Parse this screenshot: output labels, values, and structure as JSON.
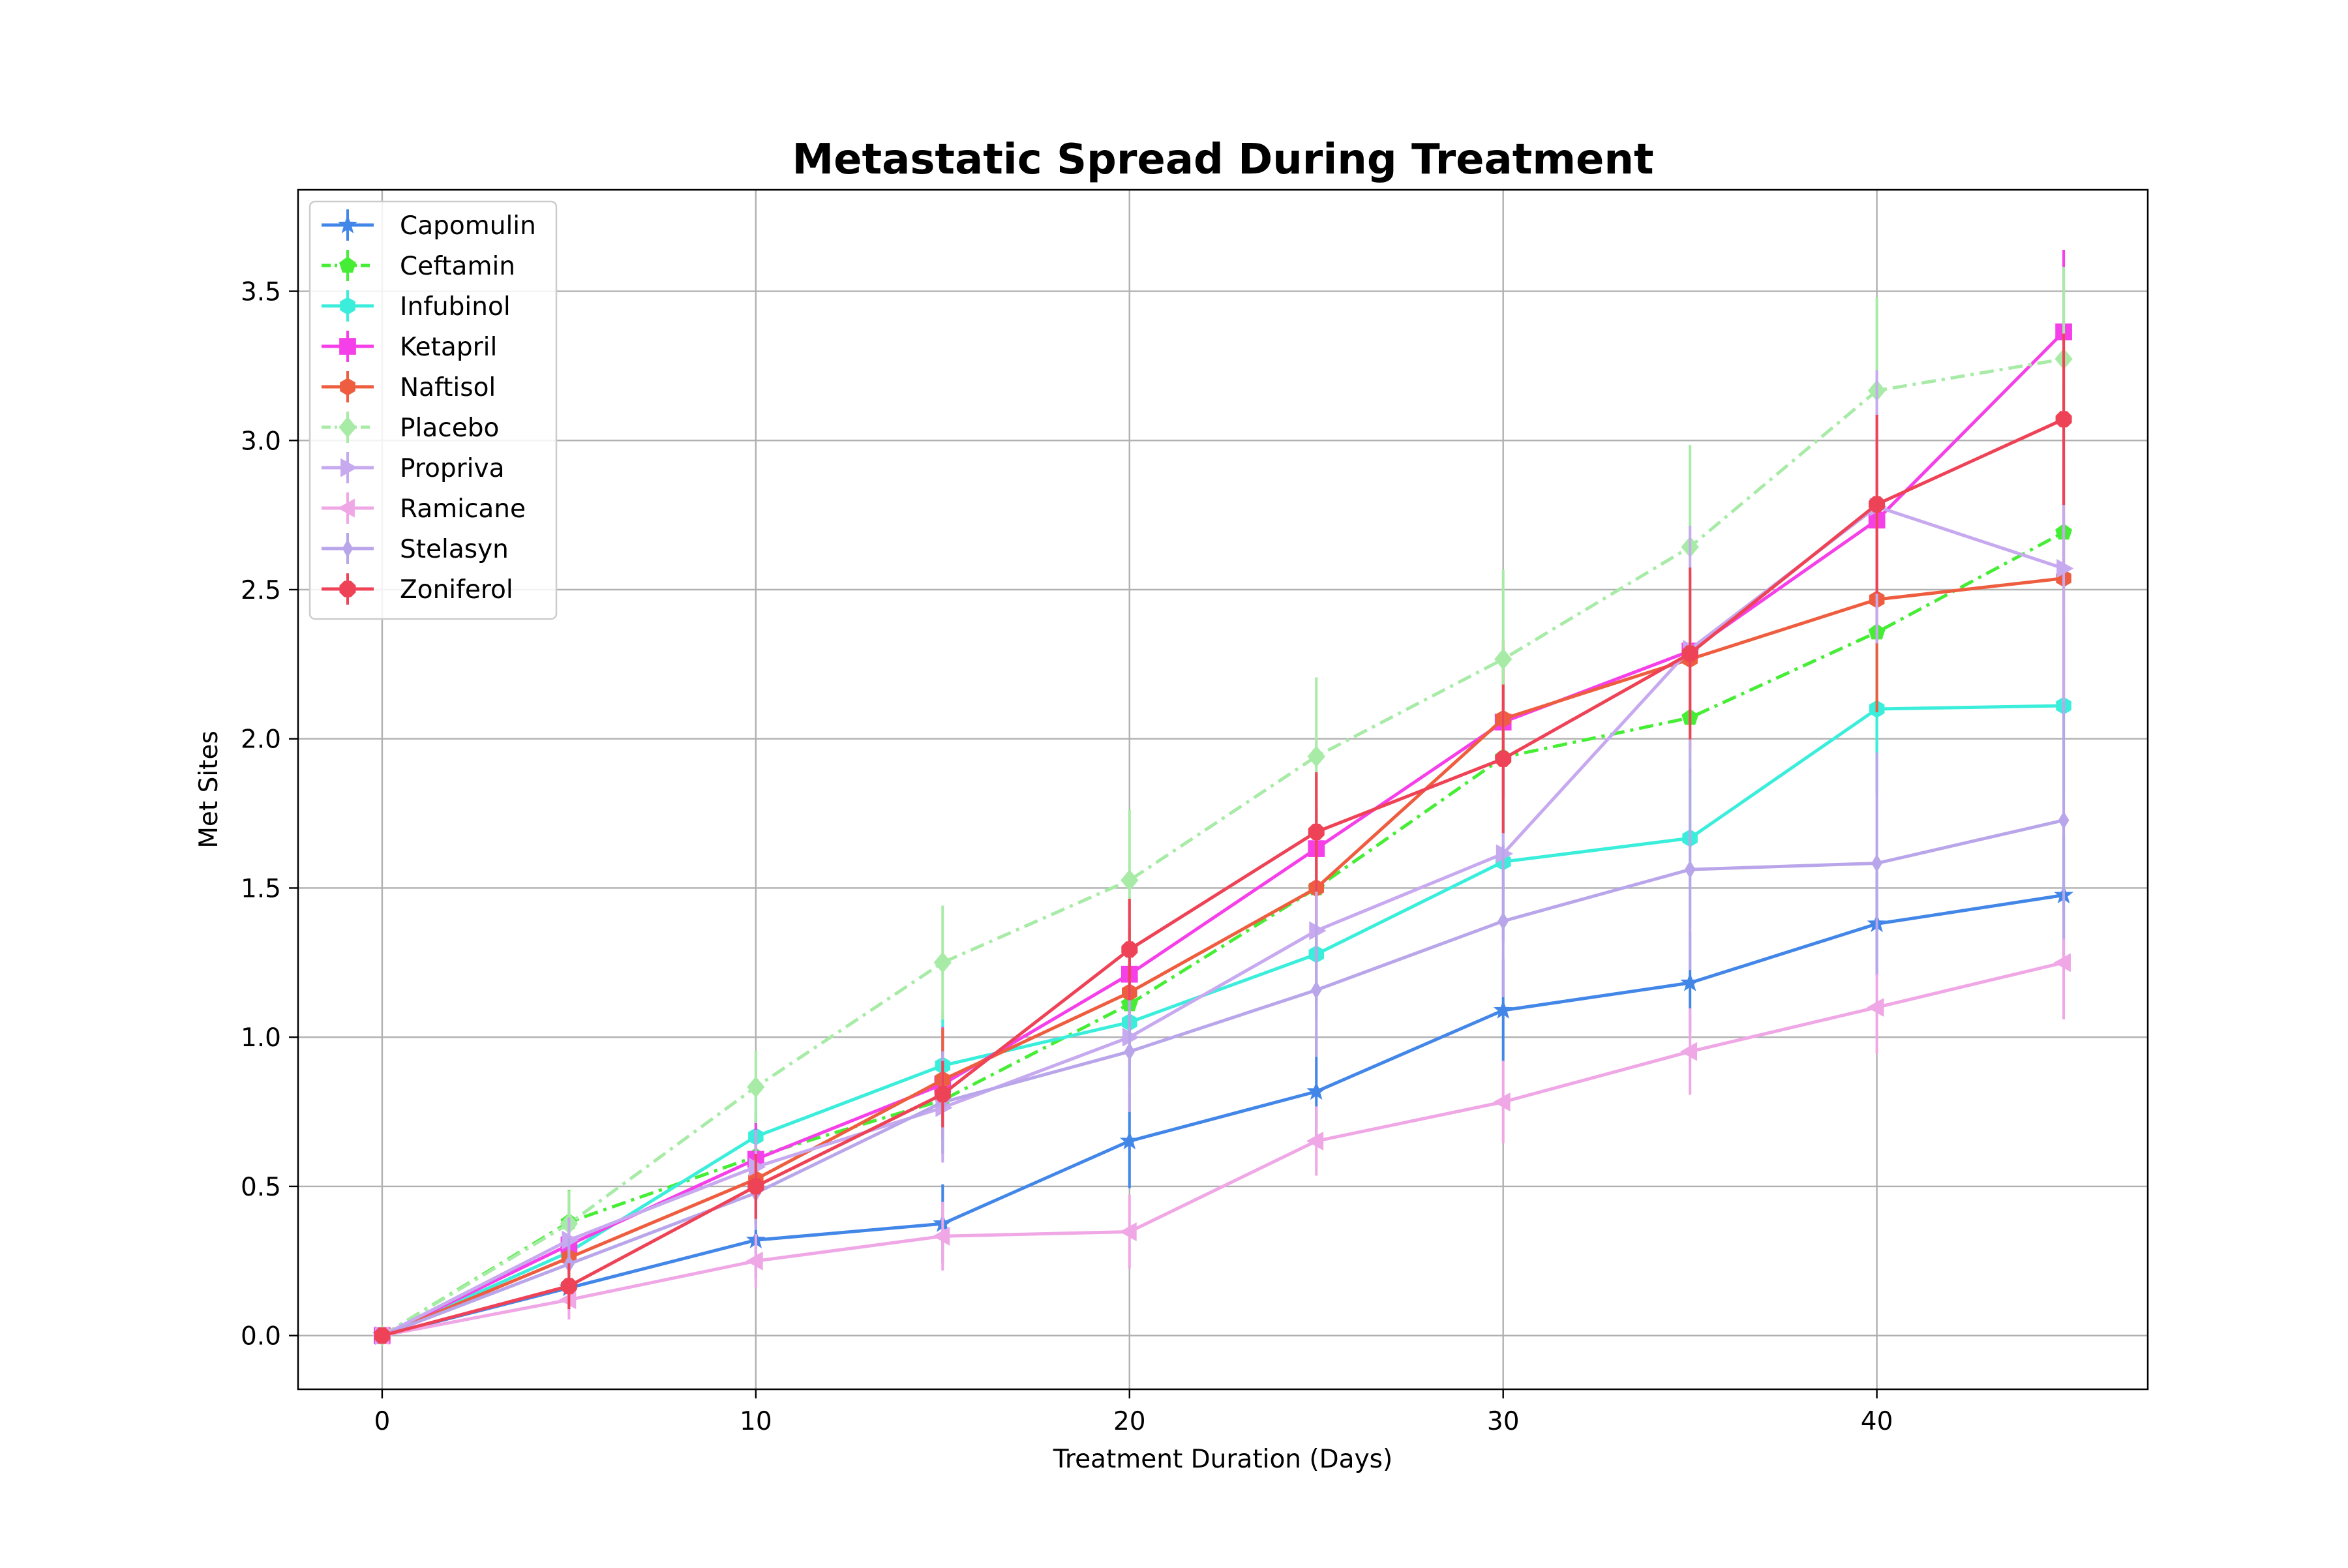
{
  "chart_data": {
    "type": "line",
    "title": "Metastatic Spread During Treatment",
    "xlabel": "Treatment Duration (Days)",
    "ylabel": "Met Sites",
    "xlim": [
      -2.25,
      47.25
    ],
    "ylim": [
      -0.18,
      3.84
    ],
    "xticks": [
      0,
      10,
      20,
      30,
      40
    ],
    "yticks": [
      0.0,
      0.5,
      1.0,
      1.5,
      2.0,
      2.5,
      3.0,
      3.5
    ],
    "grid": true,
    "legend_position": "upper-left",
    "x": [
      0,
      5,
      10,
      15,
      20,
      25,
      30,
      35,
      40,
      45
    ],
    "series": [
      {
        "name": "Capomulin",
        "color": "#4286e8",
        "dash": "solid",
        "marker": "star",
        "values": [
          0.0,
          0.16,
          0.32,
          0.375,
          0.652,
          0.818,
          1.09,
          1.182,
          1.38,
          1.476
        ],
        "errors": [
          0.0,
          0.074,
          0.126,
          0.132,
          0.158,
          0.181,
          0.172,
          0.169,
          0.175,
          0.203
        ]
      },
      {
        "name": "Ceftamin",
        "color": "#45ee35",
        "dash": "dashdot",
        "marker": "pentagon",
        "values": [
          0.0,
          0.38,
          0.6,
          0.789,
          1.111,
          1.5,
          1.938,
          2.071,
          2.357,
          2.692
        ],
        "errors": [
          0.0,
          0.108,
          0.152,
          0.181,
          0.241,
          0.258,
          0.249,
          0.438,
          0.428,
          0.491
        ]
      },
      {
        "name": "Infubinol",
        "color": "#3aeedb",
        "dash": "solid",
        "marker": "hexagon",
        "values": [
          0.0,
          0.28,
          0.667,
          0.905,
          1.05,
          1.278,
          1.588,
          1.667,
          2.1,
          2.111
        ],
        "errors": [
          0.0,
          0.093,
          0.163,
          0.171,
          0.221,
          0.216,
          0.269,
          0.298,
          0.287,
          0.307
        ]
      },
      {
        "name": "Ketapril",
        "color": "#f53fe8",
        "dash": "solid",
        "marker": "square",
        "values": [
          0.0,
          0.304,
          0.591,
          0.842,
          1.211,
          1.632,
          2.056,
          2.294,
          2.733,
          3.364
        ],
        "errors": [
          0.0,
          0.099,
          0.132,
          0.192,
          0.249,
          0.249,
          0.252,
          0.268,
          0.295,
          0.275
        ]
      },
      {
        "name": "Naftisol",
        "color": "#ee5d3f",
        "dash": "solid",
        "marker": "hexagon",
        "values": [
          0.0,
          0.261,
          0.524,
          0.857,
          1.15,
          1.5,
          2.067,
          2.267,
          2.467,
          2.538
        ],
        "errors": [
          0.0,
          0.091,
          0.151,
          0.173,
          0.222,
          0.274,
          0.264,
          0.303,
          0.378,
          0.402
        ]
      },
      {
        "name": "Placebo",
        "color": "#a7eba7",
        "dash": "dashdot",
        "marker": "diamond",
        "values": [
          0.0,
          0.375,
          0.833,
          1.25,
          1.526,
          1.941,
          2.267,
          2.643,
          3.167,
          3.273
        ],
        "errors": [
          0.0,
          0.11,
          0.121,
          0.191,
          0.237,
          0.265,
          0.299,
          0.342,
          0.312,
          0.309
        ]
      },
      {
        "name": "Propriva",
        "color": "#c7a9ef",
        "dash": "solid",
        "marker": "triangle-right",
        "values": [
          0.0,
          0.32,
          0.565,
          0.764,
          1.0,
          1.357,
          1.615,
          2.3,
          2.778,
          2.571
        ],
        "errors": [
          0.0,
          0.076,
          0.124,
          0.184,
          0.196,
          0.248,
          0.291,
          0.414,
          0.458,
          0.523
        ]
      },
      {
        "name": "Ramicane",
        "color": "#efa7e5",
        "dash": "solid",
        "marker": "triangle-left",
        "values": [
          0.0,
          0.12,
          0.25,
          0.333,
          0.348,
          0.652,
          0.783,
          0.952,
          1.1,
          1.25
        ],
        "errors": [
          0.0,
          0.066,
          0.09,
          0.115,
          0.124,
          0.116,
          0.138,
          0.145,
          0.155,
          0.19
        ]
      },
      {
        "name": "Stelasyn",
        "color": "#b9a6ea",
        "dash": "solid",
        "marker": "thin-diamond",
        "values": [
          0.0,
          0.24,
          0.478,
          0.782,
          0.952,
          1.158,
          1.389,
          1.562,
          1.583,
          1.727
        ],
        "errors": [
          0.0,
          0.087,
          0.124,
          0.171,
          0.203,
          0.224,
          0.255,
          0.337,
          0.371,
          0.398
        ]
      },
      {
        "name": "Zoniferol",
        "color": "#ee4256",
        "dash": "solid",
        "marker": "octagon",
        "values": [
          0.0,
          0.166,
          0.5,
          0.809,
          1.294,
          1.688,
          1.933,
          2.286,
          2.786,
          3.071
        ],
        "errors": [
          0.0,
          0.077,
          0.109,
          0.111,
          0.17,
          0.2,
          0.249,
          0.288,
          0.3,
          0.287
        ]
      }
    ]
  }
}
